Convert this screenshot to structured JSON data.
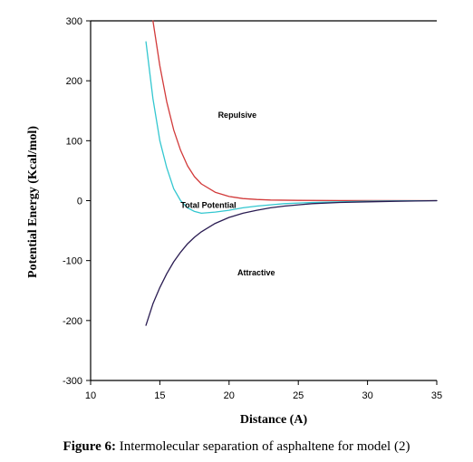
{
  "caption": {
    "label": "Figure 6:",
    "text": "Intermolecular separation of asphaltene for model (2)"
  },
  "chart_data": {
    "type": "line",
    "title": "",
    "xlabel": "Distance (A)",
    "ylabel": "Potential Energy (Kcal/mol)",
    "xlim": [
      10,
      35
    ],
    "ylim": [
      -300,
      300
    ],
    "xticks": [
      10,
      15,
      20,
      25,
      30,
      35
    ],
    "yticks": [
      300,
      200,
      100,
      0,
      -100,
      -200,
      -300
    ],
    "grid": false,
    "legend": "none",
    "series": [
      {
        "name": "Repulsive",
        "color": "#d23a3a",
        "x": [
          14.5,
          15,
          15.5,
          16,
          16.5,
          17,
          17.5,
          18,
          19,
          20,
          21,
          22,
          23,
          25,
          28,
          30,
          35
        ],
        "y": [
          300,
          225,
          165,
          118,
          84,
          58,
          40,
          28,
          14,
          7,
          3.5,
          2,
          1,
          0.5,
          0.2,
          0.1,
          0
        ]
      },
      {
        "name": "Total Potential",
        "color": "#33c7d0",
        "x": [
          14,
          14.5,
          15,
          15.5,
          16,
          16.5,
          17,
          17.5,
          18,
          19,
          20,
          21,
          22,
          23,
          24,
          25,
          26,
          28,
          30,
          32,
          35
        ],
        "y": [
          265,
          170,
          100,
          55,
          20,
          0,
          -12,
          -18,
          -21,
          -19,
          -16,
          -12,
          -9,
          -7,
          -5,
          -4,
          -3,
          -2,
          -1,
          -0.5,
          0
        ]
      },
      {
        "name": "Attractive",
        "color": "#2a1c52",
        "x": [
          14,
          14.5,
          15,
          15.5,
          16,
          16.5,
          17,
          17.5,
          18,
          19,
          20,
          21,
          22,
          23,
          24,
          25,
          26,
          28,
          30,
          32,
          35
        ],
        "y": [
          -208,
          -172,
          -145,
          -122,
          -102,
          -86,
          -72,
          -61,
          -52,
          -38,
          -28,
          -21,
          -16,
          -12,
          -9,
          -7,
          -5,
          -3,
          -2,
          -1,
          0
        ]
      }
    ],
    "annotations": [
      {
        "text": "Repulsive",
        "x": 19.2,
        "y": 138
      },
      {
        "text": "Total Potential",
        "x": 16.5,
        "y": -12
      },
      {
        "text": "Attractive",
        "x": 20.6,
        "y": -125
      }
    ]
  }
}
